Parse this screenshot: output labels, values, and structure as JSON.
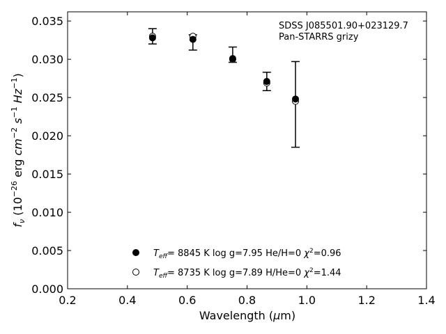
{
  "chart_data": {
    "type": "scatter",
    "title": "",
    "annotation": [
      "SDSS J085501.90+023129.7",
      "Pan-STARRS grizy"
    ],
    "xlabel": "Wavelength (μm)",
    "ylabel": "f_ν (10^-26 erg cm^-2 s^-1 Hz^-1)",
    "xlim": [
      0.2,
      1.4
    ],
    "ylim": [
      0.0,
      0.0362
    ],
    "xticks": [
      "0.2",
      "0.4",
      "0.6",
      "0.8",
      "1.0",
      "1.2",
      "1.4"
    ],
    "yticks": [
      "0.000",
      "0.005",
      "0.010",
      "0.015",
      "0.020",
      "0.025",
      "0.030",
      "0.035"
    ],
    "grid": false,
    "legend_position": "bottom-center",
    "observed": {
      "x": [
        0.484,
        0.619,
        0.752,
        0.866,
        0.962
      ],
      "y": [
        0.033,
        0.0322,
        0.0306,
        0.0271,
        0.0241
      ],
      "yerr": [
        0.001,
        0.001,
        0.001,
        0.0012,
        0.0056
      ]
    },
    "series": [
      {
        "name": "T_eff= 8845 K log g=7.95 He/H=0 χ²=0.96",
        "marker": "filled-circle",
        "x": [
          0.484,
          0.619,
          0.752,
          0.866,
          0.962
        ],
        "y": [
          0.0328,
          0.0326,
          0.0301,
          0.0271,
          0.0248
        ]
      },
      {
        "name": "T_eff= 8735 K log g=7.89 H/He=0 χ²=1.44",
        "marker": "open-circle",
        "x": [
          0.484,
          0.619,
          0.752,
          0.866,
          0.962
        ],
        "y": [
          0.033,
          0.033,
          0.03,
          0.0269,
          0.0245
        ]
      }
    ]
  }
}
